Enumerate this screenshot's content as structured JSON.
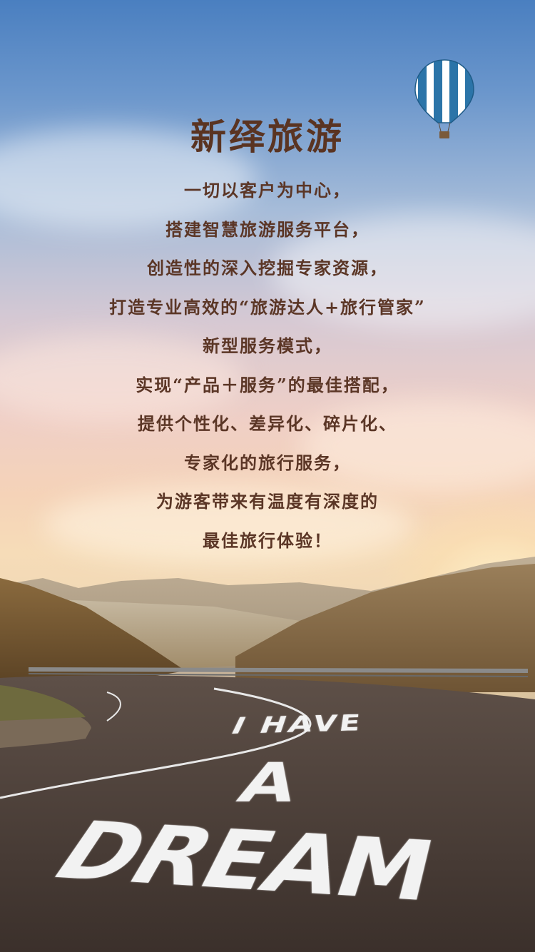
{
  "title": "新绎旅游",
  "lines": [
    "一切以客户为中心，",
    "搭建智慧旅游服务平台，",
    "创造性的深入挖掘专家资源，",
    "打造专业高效的“旅游达人+旅行管家”",
    "新型服务模式，",
    "实现“产品＋服务”的最佳搭配，",
    "提供个性化、差异化、碎片化、",
    "专家化的旅行服务，",
    "为游客带来有温度有深度的",
    "最佳旅行体验！"
  ],
  "road_text": {
    "line1": "I HAVE",
    "line2": "A",
    "line3": "DREAM"
  },
  "icons": {
    "balloon": "hot-air-balloon-icon"
  },
  "colors": {
    "text": "#5b3626",
    "road_text": "#f2f2f2"
  }
}
